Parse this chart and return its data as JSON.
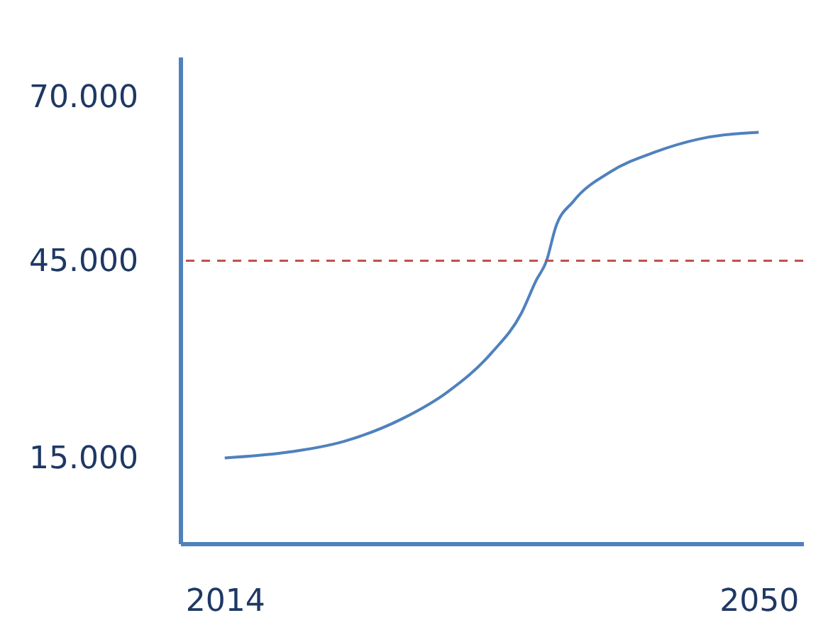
{
  "chart_data": {
    "type": "line",
    "x": [
      2014,
      2018,
      2022,
      2026,
      2029,
      2032,
      2034,
      2035,
      2035.7,
      2036.3,
      2037.5,
      2040,
      2043,
      2046,
      2050
    ],
    "series": [
      {
        "color": "#4f81bd",
        "values": [
          15000,
          15800,
          17500,
          21000,
          25000,
          31000,
          37000,
          42000,
          45000,
          50000,
          54000,
          58500,
          61500,
          63500,
          64500
        ]
      }
    ],
    "xlim": [
      2011,
      2053
    ],
    "xticks": [
      2014,
      2050
    ],
    "ylim": [
      2000,
      76000
    ],
    "yticks": [
      {
        "value": 15000,
        "label": "15.000"
      },
      {
        "value": 45000,
        "label": "45.000"
      },
      {
        "value": 70000,
        "label": "70.000"
      }
    ],
    "ref_lines": [
      {
        "axis": "y",
        "value": 45000,
        "color": "#c0504d",
        "line_style": "dashed"
      }
    ],
    "grid": false,
    "marker": "none",
    "line_style": "solid"
  }
}
